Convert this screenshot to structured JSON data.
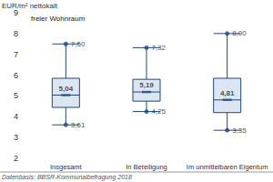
{
  "chart_data": {
    "type": "boxplot",
    "y_label": "EUR/m² nettokalt",
    "annotations": [
      "freier Wohnraum"
    ],
    "note": "Datenbasis: BBSR-Kommunalbefragung 2018",
    "categories": [
      "Insgesamt",
      "In Beteiligung",
      "Im unmittelbaren Eigentum"
    ],
    "values": [
      [
        3.61,
        4.45,
        5.04,
        5.85,
        7.5
      ],
      [
        4.25,
        4.75,
        5.19,
        5.8,
        7.32
      ],
      [
        3.35,
        4.2,
        4.81,
        5.85,
        8.0
      ]
    ],
    "value_labels": [
      {
        "min": "3,61",
        "median": "5,04",
        "max": "7,50"
      },
      {
        "min": "4,25",
        "median": "5,19",
        "max": "7,32"
      },
      {
        "min": "3,35",
        "median": "4,81",
        "max": "8,00"
      }
    ],
    "color": "#dce6f2",
    "ylim": [
      2,
      9
    ],
    "yticks": [
      2,
      3,
      4,
      5,
      6,
      7,
      8,
      9
    ],
    "grid": false,
    "data_labels": true
  }
}
